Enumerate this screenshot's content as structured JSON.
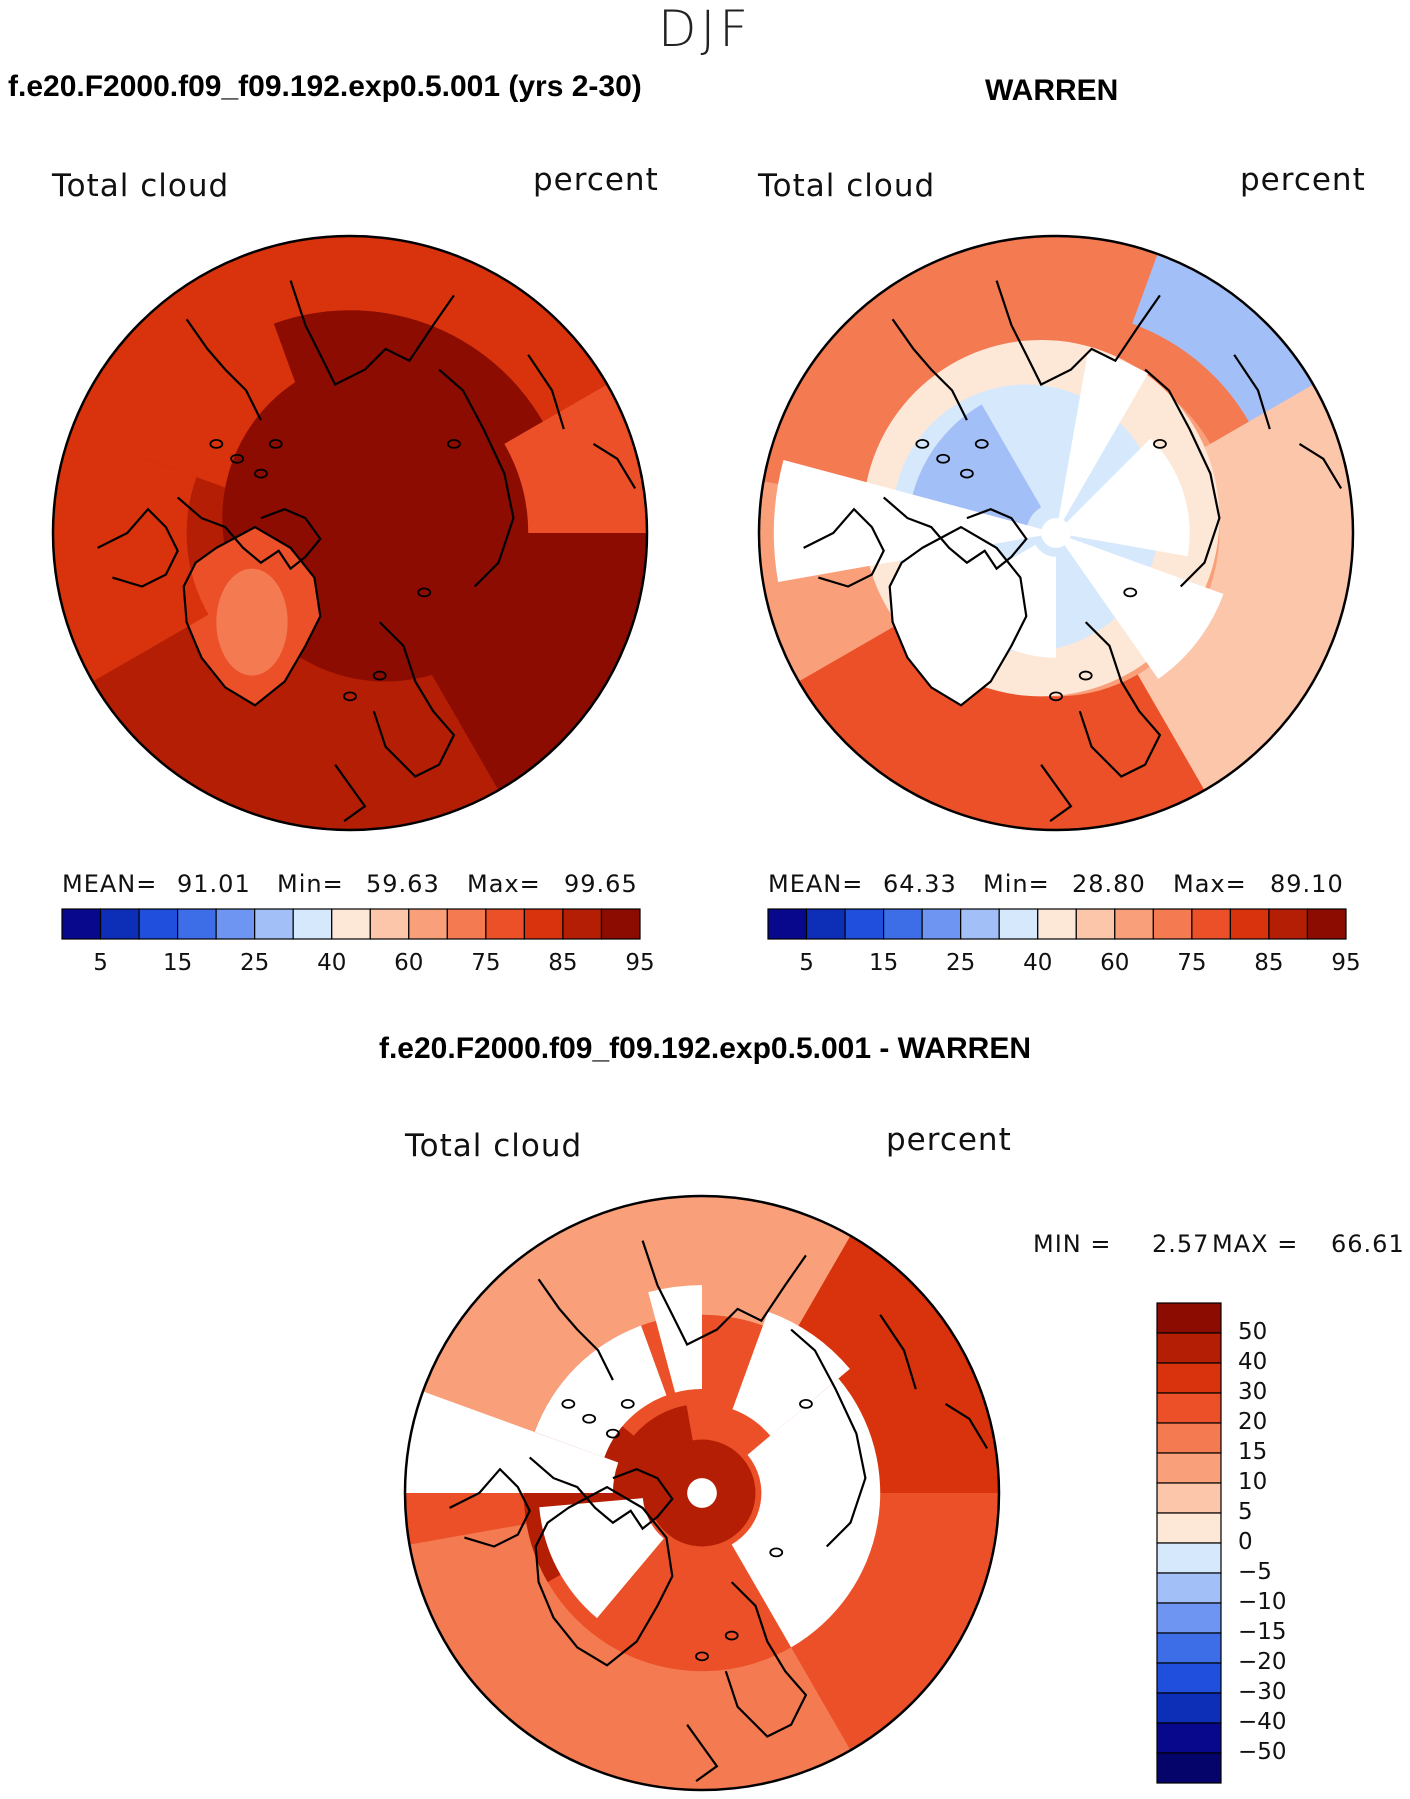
{
  "season": "DJF",
  "panels": [
    {
      "id": "model",
      "title": "f.e20.F2000.f09_f09.192.exp0.5.001 (yrs 2-30)",
      "variable": "Total cloud",
      "units": "percent",
      "stats": {
        "mean_label": "MEAN=",
        "mean": "91.01",
        "min_label": "Min=",
        "min": "59.63",
        "max_label": "Max=",
        "max": "99.65"
      },
      "colorbar_ticks": [
        "5",
        "15",
        "25",
        "40",
        "60",
        "75",
        "85",
        "95"
      ]
    },
    {
      "id": "obs",
      "title": "WARREN",
      "variable": "Total cloud",
      "units": "percent",
      "stats": {
        "mean_label": "MEAN=",
        "mean": "64.33",
        "min_label": "Min=",
        "min": "28.80",
        "max_label": "Max=",
        "max": "89.10"
      },
      "colorbar_ticks": [
        "5",
        "15",
        "25",
        "40",
        "60",
        "75",
        "85",
        "95"
      ]
    },
    {
      "id": "diff",
      "title": "f.e20.F2000.f09_f09.192.exp0.5.001 - WARREN",
      "variable": "Total cloud",
      "units": "percent",
      "stats": {
        "min_label": "MIN =",
        "min": "2.57",
        "max_label": "MAX =",
        "max": "66.61"
      },
      "colorbar_ticks": [
        "50",
        "40",
        "30",
        "20",
        "15",
        "10",
        "5",
        "0",
        "−5",
        "−10",
        "−15",
        "−20",
        "−30",
        "−40",
        "−50"
      ]
    }
  ],
  "palettes": {
    "abs": [
      "#08088c",
      "#0d2fb8",
      "#1f4fdc",
      "#3d6ee8",
      "#6e95f2",
      "#a3bff8",
      "#d6e8fb",
      "#fde8d8",
      "#fcc6aa",
      "#f9a07a",
      "#f47a52",
      "#ec5028",
      "#d8330c",
      "#b41e04",
      "#8c0c02"
    ],
    "diff": [
      "#8c0c02",
      "#b41e04",
      "#d8330c",
      "#ec5028",
      "#f47a52",
      "#f9a07a",
      "#fcc6aa",
      "#fde8d8",
      "#d6e8fb",
      "#a3bff8",
      "#6e95f2",
      "#3d6ee8",
      "#1f4fdc",
      "#0d2fb8",
      "#08088c",
      "#04046a"
    ]
  }
}
